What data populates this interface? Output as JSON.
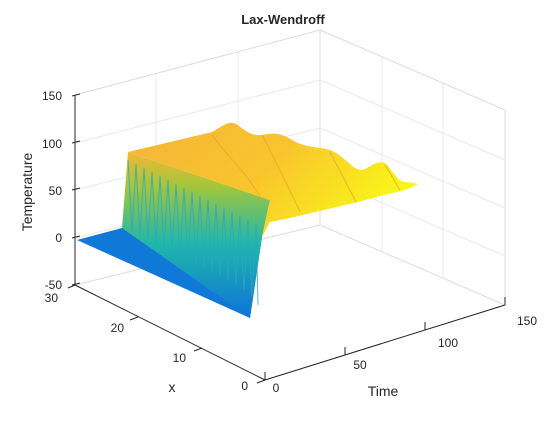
{
  "chart_data": {
    "type": "surface",
    "title": "Lax-Wendroff",
    "xlabel": "Time",
    "ylabel": "x",
    "zlabel": "Temperature",
    "x_ticks": [
      0,
      50,
      100,
      150
    ],
    "y_ticks": [
      0,
      10,
      20,
      30
    ],
    "z_ticks": [
      -50,
      0,
      50,
      100,
      150
    ],
    "xlim": [
      0,
      150
    ],
    "ylim": [
      0,
      30
    ],
    "zlim": [
      -50,
      150
    ],
    "grid": true,
    "colormap": "parula",
    "colors": {
      "low": "#0f73d9",
      "mid": "#1fb8a8",
      "high": "#f5d520",
      "top": "#f9f51a"
    },
    "surface_description_values": {
      "initial_temperature": 0,
      "plateau_temperature": 100,
      "x_step_location": 10,
      "time_end": 100
    }
  }
}
